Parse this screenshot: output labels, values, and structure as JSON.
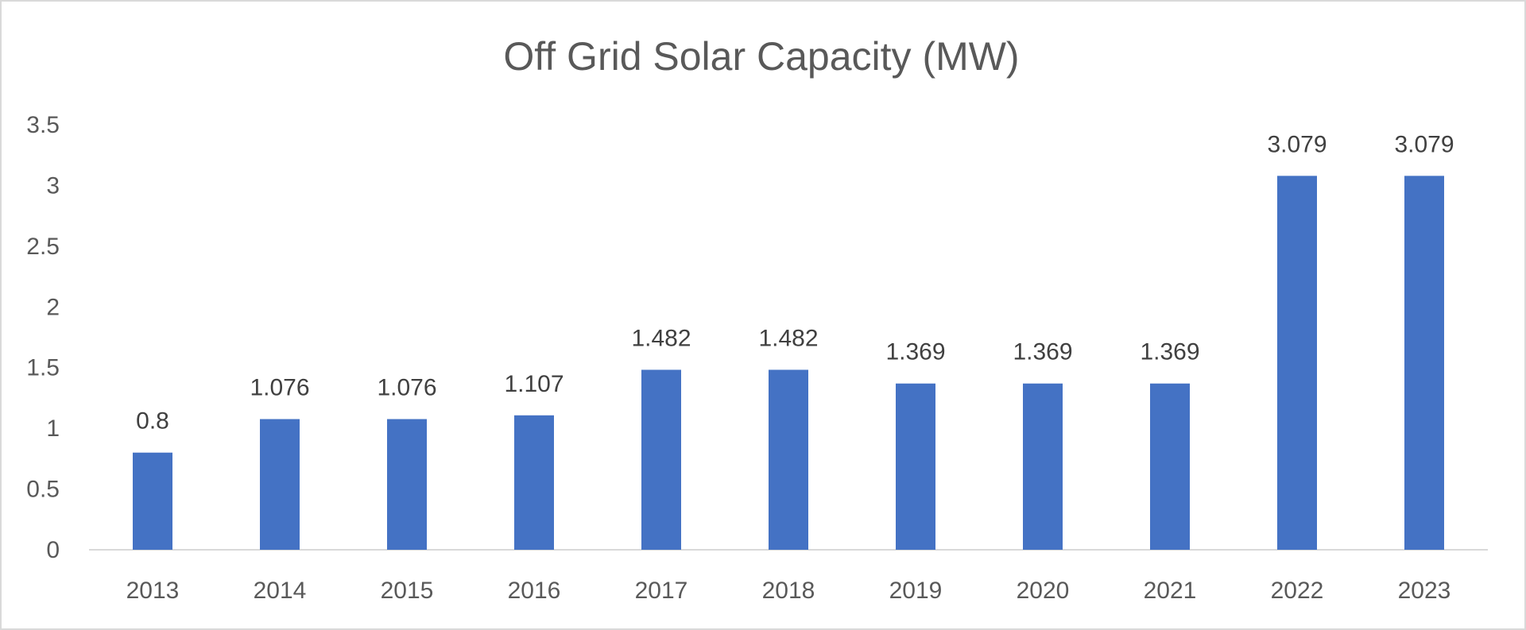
{
  "chart_data": {
    "type": "bar",
    "title": "Off Grid Solar Capacity (MW)",
    "xlabel": "",
    "ylabel": "",
    "categories": [
      "2013",
      "2014",
      "2015",
      "2016",
      "2017",
      "2018",
      "2019",
      "2020",
      "2021",
      "2022",
      "2023"
    ],
    "values": [
      0.8,
      1.076,
      1.076,
      1.107,
      1.482,
      1.482,
      1.369,
      1.369,
      1.369,
      3.079,
      3.079
    ],
    "data_labels": [
      "0.8",
      "1.076",
      "1.076",
      "1.107",
      "1.482",
      "1.482",
      "1.369",
      "1.369",
      "1.369",
      "3.079",
      "3.079"
    ],
    "ylim": [
      0,
      3.5
    ],
    "yticks": [
      0,
      0.5,
      1,
      1.5,
      2,
      2.5,
      3,
      3.5
    ],
    "ytick_labels": [
      "0",
      "0.5",
      "1",
      "1.5",
      "2",
      "2.5",
      "3",
      "3.5"
    ],
    "grid": false,
    "legend": "none",
    "bar_color": "#4472C4"
  }
}
